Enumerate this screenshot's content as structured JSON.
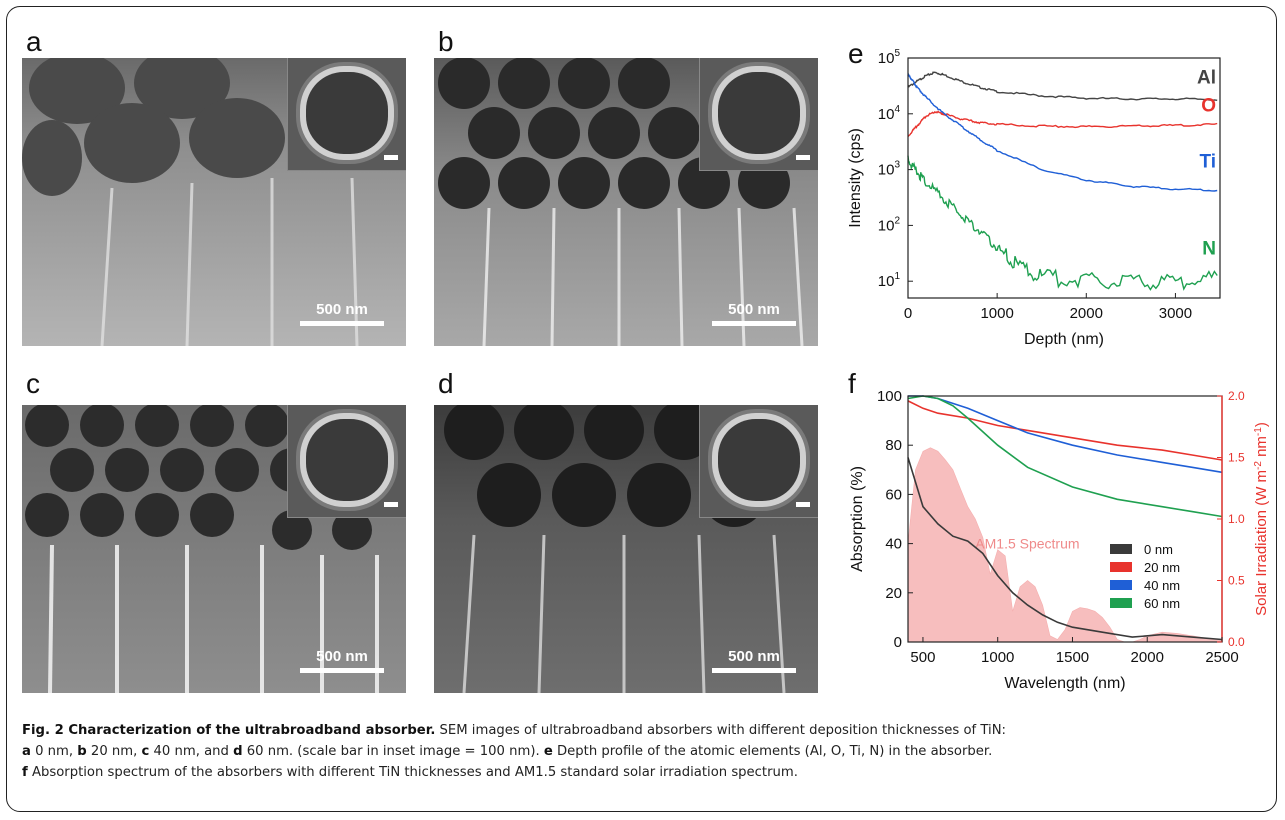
{
  "panels": {
    "a": {
      "label": "a",
      "scale": "500 nm"
    },
    "b": {
      "label": "b",
      "scale": "500 nm"
    },
    "c": {
      "label": "c",
      "scale": "500 nm"
    },
    "d": {
      "label": "d",
      "scale": "500 nm"
    },
    "e": {
      "label": "e"
    },
    "f": {
      "label": "f"
    }
  },
  "caption": {
    "title": "Fig. 2 Characterization of the ultrabroadband absorber.",
    "s1": " SEM images of ultrabroadband absorbers with different deposition thicknesses of TiN:",
    "a_l": "a",
    "a_t": " 0 nm, ",
    "b_l": "b",
    "b_t": " 20 nm, ",
    "c_l": "c",
    "c_t": " 40 nm, and ",
    "d_l": "d",
    "d_t": " 60 nm. (scale bar in inset image = 100 nm). ",
    "e_l": "e",
    "e_t": " Depth profile of the atomic elements (Al, O, Ti, N) in the absorber.",
    "f_l": "f",
    "f_t": " Absorption spectrum of the absorbers with different TiN thicknesses and AM1.5 standard solar irradiation spectrum."
  },
  "chart_data": [
    {
      "type": "line",
      "xlabel": "Depth (nm)",
      "ylabel": "Intensity (cps)",
      "xlim": [
        0,
        3500
      ],
      "ylim": [
        5,
        100000
      ],
      "yscale": "log",
      "xticks": [
        0,
        1000,
        2000,
        3000
      ],
      "yticks": [
        "10^1",
        "10^2",
        "10^3",
        "10^4",
        "10^5"
      ],
      "series": [
        {
          "name": "Al",
          "color": "#444444",
          "x": [
            0,
            100,
            200,
            300,
            400,
            600,
            800,
            1000,
            1500,
            2000,
            2500,
            3000,
            3500
          ],
          "y": [
            30000,
            38000,
            48000,
            55000,
            50000,
            38000,
            30000,
            25000,
            21000,
            19000,
            18500,
            18500,
            18000
          ]
        },
        {
          "name": "O",
          "color": "#e8332d",
          "x": [
            0,
            100,
            200,
            300,
            400,
            600,
            800,
            1000,
            1500,
            2000,
            2500,
            3000,
            3500
          ],
          "y": [
            4000,
            6000,
            9000,
            11000,
            10000,
            8000,
            7000,
            6500,
            6000,
            5900,
            6000,
            6200,
            6500
          ]
        },
        {
          "name": "Ti",
          "color": "#1f5fd6",
          "x": [
            0,
            50,
            100,
            200,
            400,
            600,
            800,
            1000,
            1500,
            2000,
            2500,
            3000,
            3500
          ],
          "y": [
            50000,
            40000,
            30000,
            20000,
            10000,
            6000,
            3500,
            2200,
            1000,
            650,
            500,
            450,
            420
          ]
        },
        {
          "name": "N",
          "color": "#1fa050",
          "x": [
            0,
            100,
            200,
            400,
            600,
            800,
            1000,
            1200,
            1500,
            2000,
            2500,
            3000,
            3500
          ],
          "y": [
            1500,
            900,
            600,
            300,
            150,
            80,
            40,
            20,
            12,
            10,
            10,
            10,
            11
          ]
        }
      ]
    },
    {
      "type": "line",
      "xlabel": "Wavelength (nm)",
      "ylabel": "Absorption (%)",
      "y2label": "Solar Irradiation (W m-2 nm-1)",
      "xlim": [
        400,
        2500
      ],
      "ylim": [
        0,
        100
      ],
      "y2lim": [
        0,
        2.0
      ],
      "xticks": [
        500,
        1000,
        1500,
        2000,
        2500
      ],
      "yticks": [
        0,
        20,
        40,
        60,
        80,
        100
      ],
      "y2ticks": [
        0.0,
        0.5,
        1.0,
        1.5,
        2.0
      ],
      "legend": "bottom-right",
      "annotation": "AM1.5 Spectrum",
      "series": [
        {
          "name": "0 nm",
          "color": "#3a3a3a",
          "x": [
            400,
            500,
            600,
            700,
            800,
            900,
            1000,
            1100,
            1200,
            1300,
            1400,
            1500,
            1700,
            1900,
            2100,
            2300,
            2500
          ],
          "y": [
            75,
            55,
            48,
            43,
            41,
            36,
            27,
            20,
            15,
            11,
            8,
            6,
            4,
            2,
            3,
            2,
            1
          ]
        },
        {
          "name": "20 nm",
          "color": "#e8332d",
          "x": [
            400,
            500,
            600,
            800,
            1000,
            1200,
            1500,
            1800,
            2100,
            2300,
            2500
          ],
          "y": [
            98,
            95,
            93,
            91,
            88,
            86,
            83,
            80,
            78,
            76,
            74
          ]
        },
        {
          "name": "40 nm",
          "color": "#1f5fd6",
          "x": [
            400,
            500,
            600,
            800,
            1000,
            1200,
            1500,
            1800,
            2100,
            2300,
            2500
          ],
          "y": [
            100,
            100,
            99,
            95,
            90,
            85,
            80,
            76,
            73,
            71,
            69
          ]
        },
        {
          "name": "60 nm",
          "color": "#1fa050",
          "x": [
            400,
            500,
            600,
            700,
            800,
            1000,
            1200,
            1500,
            1800,
            2100,
            2300,
            2500
          ],
          "y": [
            99,
            100,
            99,
            96,
            91,
            80,
            71,
            63,
            58,
            55,
            53,
            51
          ]
        }
      ],
      "solar": {
        "name": "AM1.5 Spectrum",
        "color": "#f7b8b8",
        "x": [
          400,
          450,
          500,
          550,
          600,
          650,
          700,
          750,
          800,
          850,
          900,
          950,
          1000,
          1050,
          1100,
          1150,
          1200,
          1250,
          1300,
          1350,
          1400,
          1450,
          1500,
          1550,
          1600,
          1650,
          1700,
          1750,
          1800,
          1850,
          1900,
          1950,
          2000,
          2100,
          2200,
          2300,
          2400,
          2500
        ],
        "y": [
          0.8,
          1.4,
          1.55,
          1.58,
          1.55,
          1.48,
          1.4,
          1.25,
          1.1,
          1.0,
          0.85,
          0.55,
          0.75,
          0.7,
          0.25,
          0.45,
          0.5,
          0.45,
          0.3,
          0.05,
          0.02,
          0.1,
          0.25,
          0.28,
          0.27,
          0.25,
          0.2,
          0.12,
          0.02,
          0.0,
          0.0,
          0.02,
          0.05,
          0.08,
          0.07,
          0.05,
          0.03,
          0.02
        ]
      }
    }
  ]
}
